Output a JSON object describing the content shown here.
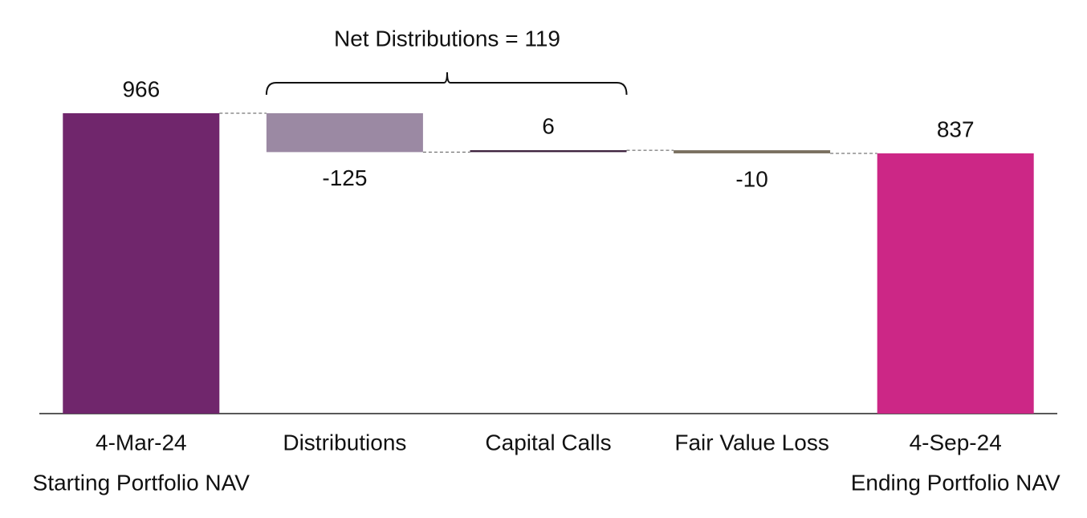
{
  "chart_data": {
    "type": "waterfall",
    "annotation": "Net Distributions = 119",
    "categories": [
      "4-Mar-24",
      "Distributions",
      "Capital Calls",
      "Fair Value Loss",
      "4-Sep-24"
    ],
    "sublabels": [
      "Starting Portfolio NAV",
      null,
      null,
      null,
      "Ending Portfolio NAV"
    ],
    "measures": [
      "absolute",
      "relative",
      "relative",
      "relative",
      "total"
    ],
    "values": [
      966,
      -125,
      6,
      -10,
      837
    ],
    "colors": [
      "#70266c",
      "#9b89a3",
      "#3b1f3b",
      "#7a7060",
      "#cc2786"
    ]
  }
}
